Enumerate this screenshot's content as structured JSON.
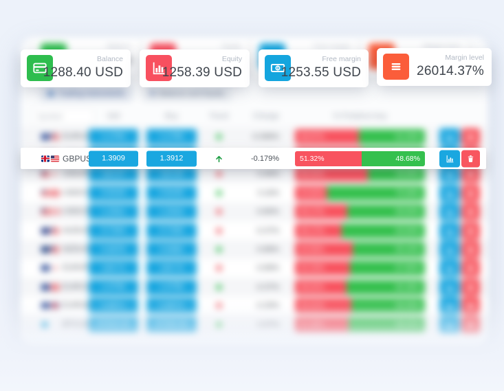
{
  "cards": [
    {
      "label": "Balance",
      "value": "1288.40 USD",
      "icon": "credit-card-icon",
      "color": "#2ebd4e"
    },
    {
      "label": "Equity",
      "value": "1258.39 USD",
      "icon": "bar-chart-icon",
      "color": "#f8505f"
    },
    {
      "label": "Free margin",
      "value": "1253.55 USD",
      "icon": "banknote-icon",
      "color": "#14a5de"
    },
    {
      "label": "Margin level",
      "value": "26014.37%",
      "icon": "menu-icon",
      "color": "#fb5d3a"
    }
  ],
  "tabs": [
    {
      "label": "Trading instruments",
      "active": true
    },
    {
      "label": "Balance and Equity",
      "icon_text": "$",
      "active": false
    }
  ],
  "table": {
    "filter_placeholder": "Symbol",
    "headers": {
      "sell": "Sell",
      "buy": "Buy",
      "trend": "Trend",
      "change": "Change",
      "sentiment": "% Positions buy"
    },
    "colors": {
      "price_button": "#1aa7e0",
      "sell_segment": "#f8535f",
      "buy_segment": "#35c04e",
      "chart_button": "#1aa7e0",
      "delete_button": "#f8565f"
    },
    "rows": [
      {
        "symbol": "EURUSD",
        "flags": [
          "eu",
          "us"
        ],
        "sell": "1.1764",
        "buy": "1.1766",
        "trend": "up",
        "change": "-0.096%",
        "sell_pct": 48.97,
        "buy_pct": 51.03
      },
      {
        "symbol": "GBPUSD",
        "flags": [
          "gb",
          "us"
        ],
        "sell": "1.3909",
        "buy": "1.3912",
        "trend": "up",
        "change": "-0.179%",
        "sell_pct": 51.32,
        "buy_pct": 48.68
      },
      {
        "symbol": "USDJPY",
        "flags": [
          "us",
          "jp"
        ],
        "sell": "110.27",
        "buy": "110.29",
        "trend": "down",
        "change": "0.46%",
        "sell_pct": 56.31,
        "buy_pct": 43.69
      },
      {
        "symbol": "USDCHF",
        "flags": [
          "us",
          "ch"
        ],
        "sell": "0.9143",
        "buy": "0.9145",
        "trend": "up",
        "change": "0.16%",
        "sell_pct": 24.92,
        "buy_pct": 75.08
      },
      {
        "symbol": "USDCAD",
        "flags": [
          "us",
          "ca"
        ],
        "sell": "1.2541",
        "buy": "1.2543",
        "trend": "down",
        "change": "-0.80%",
        "sell_pct": 40.17,
        "buy_pct": 59.83
      },
      {
        "symbol": "AUDUSD",
        "flags": [
          "au",
          "us"
        ],
        "sell": "0.7344",
        "buy": "0.7346",
        "trend": "down",
        "change": "-0.37%",
        "sell_pct": 36.17,
        "buy_pct": 63.83
      },
      {
        "symbol": "NZDUSD",
        "flags": [
          "nz",
          "us"
        ],
        "sell": "0.6978",
        "buy": "0.6980",
        "trend": "up",
        "change": "-0.86%",
        "sell_pct": 44.56,
        "buy_pct": 55.44
      },
      {
        "symbol": "EURJPY",
        "flags": [
          "eu",
          "jp"
        ],
        "sell": "129.71",
        "buy": "129.74",
        "trend": "down",
        "change": "-0.89%",
        "sell_pct": 42.15,
        "buy_pct": 57.85
      },
      {
        "symbol": "EURCHF",
        "flags": [
          "eu",
          "ch"
        ],
        "sell": "1.0756",
        "buy": "1.0758",
        "trend": "up",
        "change": "-0.37%",
        "sell_pct": 39.62,
        "buy_pct": 60.38
      },
      {
        "symbol": "EURGBP",
        "flags": [
          "eu",
          "gb"
        ],
        "sell": "0.8571",
        "buy": "0.8573",
        "trend": "down",
        "change": "-0.29%",
        "sell_pct": 43.41,
        "buy_pct": 56.59
      },
      {
        "symbol": "BTCUSD",
        "flags": [
          "crypto"
        ],
        "sell": "47315.25",
        "buy": "47330.50",
        "trend": "up",
        "change": "0.97%",
        "sell_pct": 41.48,
        "buy_pct": 58.52
      }
    ]
  },
  "focused_row": {
    "symbol": "GBPUSD",
    "flags": [
      "gb",
      "us"
    ],
    "sell": "1.3909",
    "buy": "1.3912",
    "trend": "up",
    "change": "-0.179%",
    "sell_pct": 51.32,
    "buy_pct": 48.68
  }
}
